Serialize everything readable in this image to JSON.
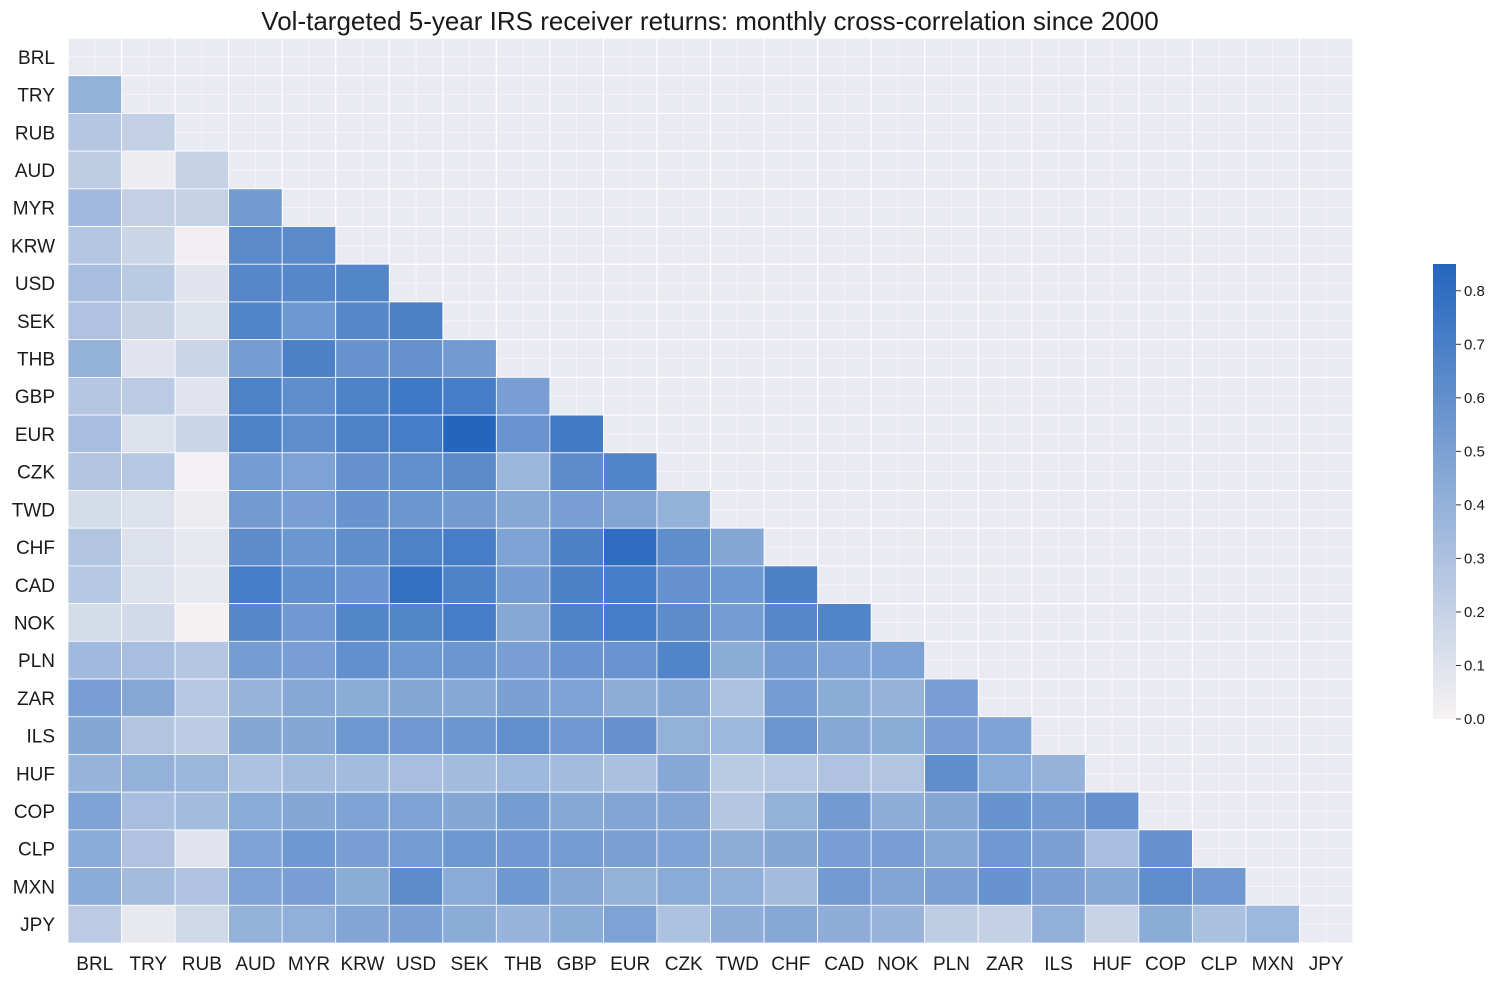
{
  "chart_data": {
    "type": "heatmap",
    "title": "Vol-targeted 5-year IRS receiver returns: monthly cross-correlation since 2000",
    "labels": [
      "BRL",
      "TRY",
      "RUB",
      "AUD",
      "MYR",
      "KRW",
      "USD",
      "SEK",
      "THB",
      "GBP",
      "EUR",
      "CZK",
      "TWD",
      "CHF",
      "CAD",
      "NOK",
      "PLN",
      "ZAR",
      "ILS",
      "HUF",
      "COP",
      "CLP",
      "MXN",
      "JPY"
    ],
    "lower_triangle_only": true,
    "values": [
      [],
      [
        0.4
      ],
      [
        0.27,
        0.21
      ],
      [
        0.23,
        0.04,
        0.2
      ],
      [
        0.35,
        0.21,
        0.2,
        0.53
      ],
      [
        0.27,
        0.18,
        0.03,
        0.63,
        0.63
      ],
      [
        0.32,
        0.25,
        0.09,
        0.65,
        0.65,
        0.66
      ],
      [
        0.29,
        0.2,
        0.11,
        0.67,
        0.55,
        0.65,
        0.69
      ],
      [
        0.4,
        0.09,
        0.18,
        0.52,
        0.69,
        0.58,
        0.59,
        0.53
      ],
      [
        0.27,
        0.24,
        0.09,
        0.68,
        0.61,
        0.68,
        0.74,
        0.71,
        0.51
      ],
      [
        0.32,
        0.11,
        0.18,
        0.68,
        0.61,
        0.68,
        0.71,
        0.85,
        0.57,
        0.73
      ],
      [
        0.28,
        0.26,
        0.02,
        0.52,
        0.49,
        0.59,
        0.6,
        0.63,
        0.37,
        0.62,
        0.67
      ],
      [
        0.14,
        0.11,
        0.05,
        0.53,
        0.51,
        0.58,
        0.56,
        0.53,
        0.45,
        0.51,
        0.47,
        0.4
      ],
      [
        0.28,
        0.11,
        0.07,
        0.62,
        0.56,
        0.61,
        0.68,
        0.71,
        0.49,
        0.69,
        0.81,
        0.61,
        0.46
      ],
      [
        0.26,
        0.1,
        0.06,
        0.71,
        0.6,
        0.57,
        0.79,
        0.68,
        0.52,
        0.69,
        0.71,
        0.59,
        0.55,
        0.69
      ],
      [
        0.14,
        0.15,
        0.01,
        0.65,
        0.54,
        0.66,
        0.66,
        0.71,
        0.45,
        0.68,
        0.71,
        0.62,
        0.52,
        0.65,
        0.67
      ],
      [
        0.35,
        0.32,
        0.27,
        0.52,
        0.51,
        0.6,
        0.55,
        0.56,
        0.51,
        0.57,
        0.57,
        0.67,
        0.43,
        0.52,
        0.48,
        0.49
      ],
      [
        0.51,
        0.45,
        0.26,
        0.38,
        0.45,
        0.43,
        0.46,
        0.45,
        0.5,
        0.48,
        0.42,
        0.45,
        0.3,
        0.52,
        0.43,
        0.39,
        0.51
      ],
      [
        0.46,
        0.28,
        0.24,
        0.46,
        0.46,
        0.55,
        0.54,
        0.56,
        0.6,
        0.54,
        0.59,
        0.4,
        0.36,
        0.56,
        0.45,
        0.43,
        0.51,
        0.48
      ],
      [
        0.38,
        0.4,
        0.37,
        0.3,
        0.34,
        0.34,
        0.32,
        0.34,
        0.36,
        0.34,
        0.31,
        0.45,
        0.25,
        0.26,
        0.29,
        0.28,
        0.61,
        0.44,
        0.39
      ],
      [
        0.48,
        0.32,
        0.34,
        0.44,
        0.46,
        0.48,
        0.49,
        0.46,
        0.52,
        0.45,
        0.47,
        0.47,
        0.27,
        0.4,
        0.53,
        0.42,
        0.46,
        0.58,
        0.53,
        0.59
      ],
      [
        0.44,
        0.29,
        0.09,
        0.48,
        0.55,
        0.51,
        0.52,
        0.55,
        0.54,
        0.52,
        0.5,
        0.48,
        0.42,
        0.46,
        0.51,
        0.51,
        0.45,
        0.54,
        0.5,
        0.32,
        0.59
      ],
      [
        0.44,
        0.34,
        0.29,
        0.49,
        0.51,
        0.43,
        0.62,
        0.44,
        0.55,
        0.45,
        0.4,
        0.44,
        0.41,
        0.34,
        0.53,
        0.47,
        0.5,
        0.58,
        0.5,
        0.45,
        0.61,
        0.54
      ],
      [
        0.24,
        0.06,
        0.16,
        0.4,
        0.41,
        0.47,
        0.5,
        0.43,
        0.38,
        0.43,
        0.49,
        0.3,
        0.42,
        0.45,
        0.42,
        0.38,
        0.23,
        0.21,
        0.41,
        0.19,
        0.43,
        0.31,
        0.36
      ]
    ],
    "colorbar": {
      "min": 0.0,
      "max": 0.85,
      "ticks": [
        "0.0",
        "0.1",
        "0.2",
        "0.3",
        "0.4",
        "0.5",
        "0.6",
        "0.7",
        "0.8"
      ]
    },
    "colors": {
      "low": "#f7f3f3",
      "high": "#2466bd",
      "background": "#eaeaf2",
      "grid": "#ffffff"
    }
  }
}
